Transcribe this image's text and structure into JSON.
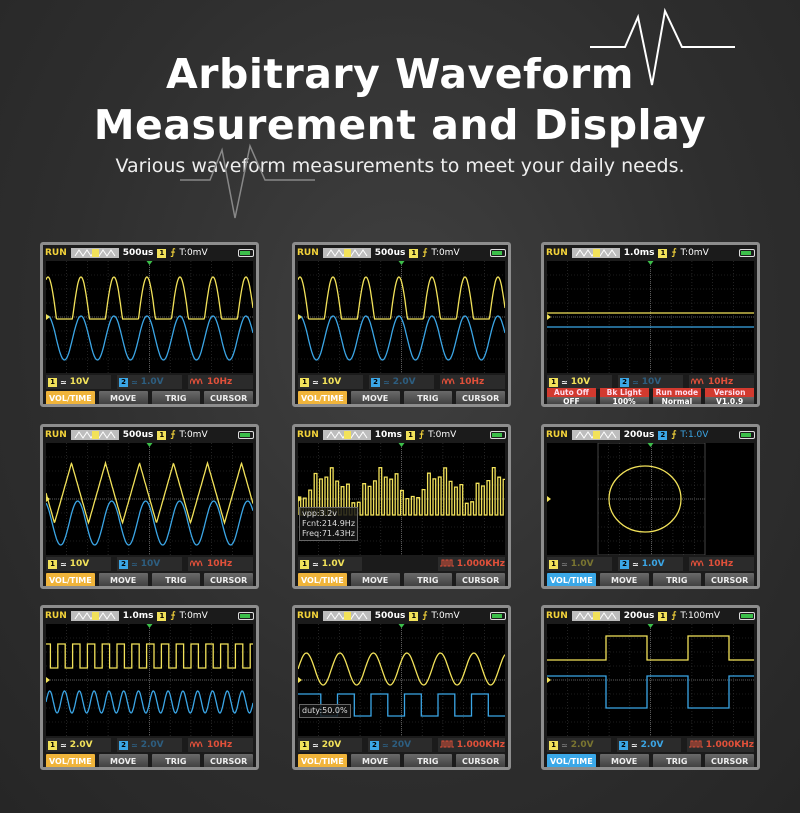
{
  "header": {
    "title_line1": "Arbitrary Waveform",
    "title_line2": "Measurement and Display",
    "subtitle": "Various waveform measurements to meet your daily needs."
  },
  "colors": {
    "ch1": "#f2e25a",
    "ch2": "#3ba6e6",
    "active_yellow": "#f0b43a",
    "active_blue": "#3aa8e8",
    "freq_red": "#e0503a",
    "settings_red": "#d23a2f"
  },
  "panels": [
    {
      "run": "RUN",
      "timebase": "500us",
      "trig_ch": "1",
      "trig_level": "T:0mV",
      "ch1": "10V",
      "ch2": "1.0V",
      "ch2_dim": true,
      "freq": "10Hz",
      "freq_icon": "sine-icon",
      "wave": "clipped-sine",
      "buttons": [
        "VOL/TIME",
        "MOVE",
        "TRIG",
        "CURSOR"
      ],
      "active": "yellow"
    },
    {
      "run": "RUN",
      "timebase": "500us",
      "trig_ch": "1",
      "trig_level": "T:0mV",
      "ch1": "10V",
      "ch2": "2.0V",
      "ch2_dim": true,
      "freq": "10Hz",
      "freq_icon": "sine-icon",
      "wave": "clipped-sine",
      "buttons": [
        "VOL/TIME",
        "MOVE",
        "TRIG",
        "CURSOR"
      ],
      "active": "yellow"
    },
    {
      "run": "RUN",
      "timebase": "1.0ms",
      "trig_ch": "1",
      "trig_level": "T:0mV",
      "ch1": "10V",
      "ch2": "10V",
      "ch2_dim": true,
      "freq": "10Hz",
      "freq_icon": "sine-icon",
      "wave": "flat",
      "settings": [
        {
          "label": "Auto Off",
          "value": "OFF"
        },
        {
          "label": "Bk Light",
          "value": "100%"
        },
        {
          "label": "Run mode",
          "value": "Normal"
        },
        {
          "label": "Version",
          "value": "V1.0.9"
        }
      ]
    },
    {
      "run": "RUN",
      "timebase": "500us",
      "trig_ch": "1",
      "trig_level": "T:0mV",
      "ch1": "10V",
      "ch2": "10V",
      "ch2_dim": true,
      "freq": "10Hz",
      "freq_icon": "sine-icon",
      "wave": "triangle-sine",
      "buttons": [
        "VOL/TIME",
        "MOVE",
        "TRIG",
        "CURSOR"
      ],
      "active": "yellow"
    },
    {
      "run": "RUN",
      "timebase": "10ms",
      "trig_ch": "1",
      "trig_level": "T:0mV",
      "ch1": "1.0V",
      "freq": "1.000KHz",
      "freq_icon": "square-icon",
      "wave": "am-pulse",
      "overlay": [
        "vpp:3.2v",
        "Fcnt:214.9Hz",
        "Freq:71.43Hz"
      ],
      "buttons": [
        "VOL/TIME",
        "MOVE",
        "TRIG",
        "CURSOR"
      ],
      "active": "yellow"
    },
    {
      "run": "RUN",
      "timebase": "200us",
      "trig_ch": "2",
      "trig_level": "T:1.0V",
      "ch1": "1.0V",
      "ch1_dim": true,
      "ch2": "1.0V",
      "freq": "10Hz",
      "freq_icon": "sine-icon",
      "wave": "xy-circle",
      "buttons": [
        "VOL/TIME",
        "MOVE",
        "TRIG",
        "CURSOR"
      ],
      "active": "blue"
    },
    {
      "run": "RUN",
      "timebase": "1.0ms",
      "trig_ch": "1",
      "trig_level": "T:0mV",
      "ch1": "2.0V",
      "ch2": "2.0V",
      "ch2_dim": true,
      "freq": "10Hz",
      "freq_icon": "sine-icon",
      "wave": "square-sine-fast",
      "buttons": [
        "VOL/TIME",
        "MOVE",
        "TRIG",
        "CURSOR"
      ],
      "active": "yellow"
    },
    {
      "run": "RUN",
      "timebase": "500us",
      "trig_ch": "1",
      "trig_level": "T:0mV",
      "ch1": "20V",
      "ch2": "20V",
      "ch2_dim": true,
      "freq": "1.000KHz",
      "freq_icon": "square-icon",
      "wave": "sine-square",
      "overlay": [
        "duty:50.0%"
      ],
      "buttons": [
        "VOL/TIME",
        "MOVE",
        "TRIG",
        "CURSOR"
      ],
      "active": "yellow"
    },
    {
      "run": "RUN",
      "timebase": "200us",
      "trig_ch": "1",
      "trig_level": "T:100mV",
      "ch1": "2.0V",
      "ch1_dim": true,
      "ch2": "2.0V",
      "freq": "1.000KHz",
      "freq_icon": "square-icon",
      "wave": "square-slow",
      "charging": true,
      "buttons": [
        "VOL/TIME",
        "MOVE",
        "TRIG",
        "CURSOR"
      ],
      "active": "blue"
    }
  ]
}
